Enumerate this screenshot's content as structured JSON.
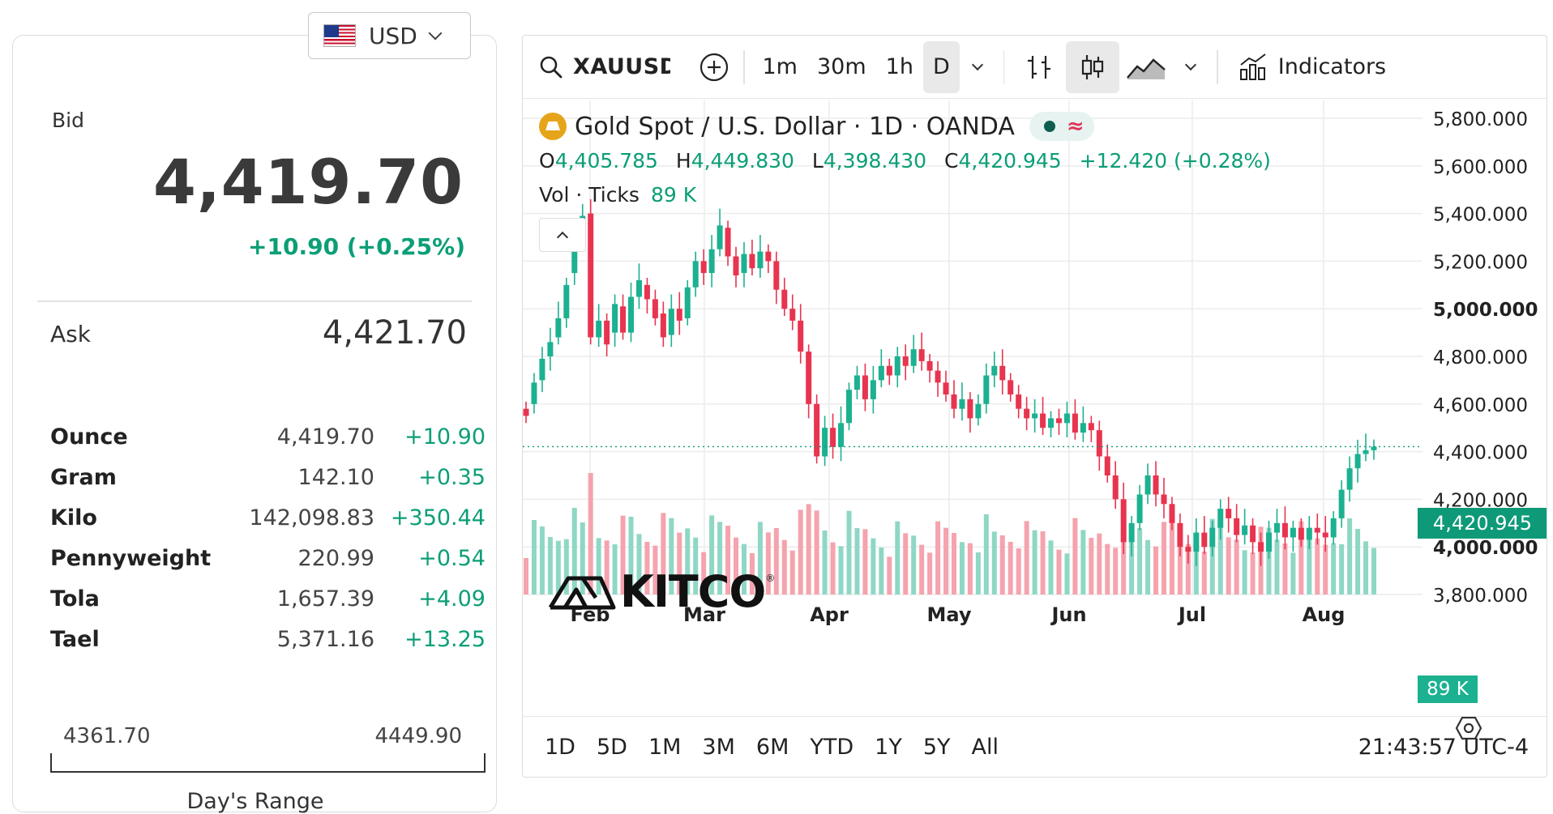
{
  "quote": {
    "currency": "USD",
    "bid_label": "Bid",
    "bid": "4,419.70",
    "bid_change": "+10.90 (+0.25%)",
    "ask_label": "Ask",
    "ask": "4,421.70",
    "units": [
      {
        "name": "Ounce",
        "price": "4,419.70",
        "change": "+10.90"
      },
      {
        "name": "Gram",
        "price": "142.10",
        "change": "+0.35"
      },
      {
        "name": "Kilo",
        "price": "142,098.83",
        "change": "+350.44"
      },
      {
        "name": "Pennyweight",
        "price": "220.99",
        "change": "+0.54"
      },
      {
        "name": "Tola",
        "price": "1,657.39",
        "change": "+4.09"
      },
      {
        "name": "Tael",
        "price": "5,371.16",
        "change": "+13.25"
      }
    ],
    "range_low": "4361.70",
    "range_high": "4449.90",
    "range_label": "Day's Range"
  },
  "toolbar": {
    "symbol": "XAUUSD",
    "intervals": [
      "1m",
      "30m",
      "1h",
      "D"
    ],
    "active_interval": "D",
    "indicators_label": "Indicators",
    "icons": [
      "search-icon",
      "add-symbol-icon",
      "bar-chart-icon",
      "candlestick-icon",
      "area-chart-icon",
      "indicators-icon"
    ]
  },
  "legend": {
    "title": "Gold Spot / U.S. Dollar · 1D · OANDA",
    "o_label": "O",
    "o": "4,405.785",
    "h_label": "H",
    "h": "4,449.830",
    "l_label": "L",
    "l": "4,398.430",
    "c_label": "C",
    "c": "4,420.945",
    "change": "+12.420 (+0.28%)",
    "vol_label": "Vol · Ticks",
    "vol": "89 K"
  },
  "price_tag": "4,420.945",
  "vol_tag": "89 K",
  "ranges": [
    "1D",
    "5D",
    "1M",
    "3M",
    "6M",
    "YTD",
    "1Y",
    "5Y",
    "All"
  ],
  "clock": "21:43:57 UTC-4",
  "watermark": "KITCO",
  "colors": {
    "up": "#1cb190",
    "down": "#e8344f",
    "accent": "#0e9a78"
  },
  "chart_data": {
    "type": "candlestick",
    "title": "Gold Spot / U.S. Dollar · 1D · OANDA",
    "y_ticks": [
      "5,800.000",
      "5,600.000",
      "5,400.000",
      "5,200.000",
      "5,000.000",
      "4,800.000",
      "4,600.000",
      "4,400.000",
      "4,200.000",
      "4,000.000",
      "3,800.000"
    ],
    "y_ticks_bold": [
      "5,000.000",
      "4,000.000"
    ],
    "x_ticks": [
      "Feb",
      "Mar",
      "Apr",
      "May",
      "Jun",
      "Jul",
      "Aug"
    ],
    "ylim": [
      3800,
      5800
    ],
    "last_close": 4420.945,
    "series": [
      {
        "name": "Gold Spot",
        "values": [
          {
            "o": 4580,
            "c": 4550
          },
          {
            "o": 4600,
            "c": 4690
          },
          {
            "o": 4700,
            "c": 4790
          },
          {
            "o": 4800,
            "c": 4860
          },
          {
            "o": 4880,
            "c": 4960
          },
          {
            "o": 4960,
            "c": 5100
          },
          {
            "o": 5150,
            "c": 5300
          },
          {
            "o": 5300,
            "c": 5390
          },
          {
            "o": 5400,
            "c": 4880
          },
          {
            "o": 4880,
            "c": 4950
          },
          {
            "o": 4950,
            "c": 4850
          },
          {
            "o": 4900,
            "c": 5020
          },
          {
            "o": 5010,
            "c": 4900
          },
          {
            "o": 4900,
            "c": 5050
          },
          {
            "o": 5050,
            "c": 5120
          },
          {
            "o": 5100,
            "c": 5040
          },
          {
            "o": 5040,
            "c": 4960
          },
          {
            "o": 4980,
            "c": 4880
          },
          {
            "o": 4890,
            "c": 5000
          },
          {
            "o": 5000,
            "c": 4950
          },
          {
            "o": 4960,
            "c": 5090
          },
          {
            "o": 5090,
            "c": 5200
          },
          {
            "o": 5200,
            "c": 5150
          },
          {
            "o": 5150,
            "c": 5250
          },
          {
            "o": 5250,
            "c": 5350
          },
          {
            "o": 5340,
            "c": 5220
          },
          {
            "o": 5220,
            "c": 5140
          },
          {
            "o": 5150,
            "c": 5230
          },
          {
            "o": 5230,
            "c": 5170
          },
          {
            "o": 5170,
            "c": 5240
          },
          {
            "o": 5240,
            "c": 5200
          },
          {
            "o": 5200,
            "c": 5080
          },
          {
            "o": 5080,
            "c": 5000
          },
          {
            "o": 5000,
            "c": 4950
          },
          {
            "o": 4950,
            "c": 4820
          },
          {
            "o": 4820,
            "c": 4600
          },
          {
            "o": 4600,
            "c": 4380
          },
          {
            "o": 4380,
            "c": 4500
          },
          {
            "o": 4500,
            "c": 4420
          },
          {
            "o": 4420,
            "c": 4520
          },
          {
            "o": 4520,
            "c": 4660
          },
          {
            "o": 4660,
            "c": 4720
          },
          {
            "o": 4720,
            "c": 4620
          },
          {
            "o": 4620,
            "c": 4700
          },
          {
            "o": 4700,
            "c": 4760
          },
          {
            "o": 4760,
            "c": 4720
          },
          {
            "o": 4720,
            "c": 4800
          },
          {
            "o": 4800,
            "c": 4760
          },
          {
            "o": 4760,
            "c": 4830
          },
          {
            "o": 4830,
            "c": 4780
          },
          {
            "o": 4780,
            "c": 4740
          },
          {
            "o": 4740,
            "c": 4690
          },
          {
            "o": 4690,
            "c": 4640
          },
          {
            "o": 4640,
            "c": 4580
          },
          {
            "o": 4580,
            "c": 4620
          },
          {
            "o": 4620,
            "c": 4540
          },
          {
            "o": 4540,
            "c": 4600
          },
          {
            "o": 4600,
            "c": 4720
          },
          {
            "o": 4720,
            "c": 4760
          },
          {
            "o": 4760,
            "c": 4700
          },
          {
            "o": 4700,
            "c": 4640
          },
          {
            "o": 4640,
            "c": 4580
          },
          {
            "o": 4580,
            "c": 4540
          },
          {
            "o": 4540,
            "c": 4560
          },
          {
            "o": 4560,
            "c": 4500
          },
          {
            "o": 4500,
            "c": 4540
          },
          {
            "o": 4540,
            "c": 4520
          },
          {
            "o": 4520,
            "c": 4560
          },
          {
            "o": 4560,
            "c": 4480
          },
          {
            "o": 4480,
            "c": 4520
          },
          {
            "o": 4520,
            "c": 4490
          },
          {
            "o": 4490,
            "c": 4380
          },
          {
            "o": 4380,
            "c": 4300
          },
          {
            "o": 4300,
            "c": 4200
          },
          {
            "o": 4200,
            "c": 4020
          },
          {
            "o": 4020,
            "c": 4100
          },
          {
            "o": 4100,
            "c": 4220
          },
          {
            "o": 4220,
            "c": 4300
          },
          {
            "o": 4300,
            "c": 4220
          },
          {
            "o": 4220,
            "c": 4180
          },
          {
            "o": 4180,
            "c": 4100
          },
          {
            "o": 4100,
            "c": 4000
          },
          {
            "o": 4000,
            "c": 3980
          },
          {
            "o": 3980,
            "c": 4060
          },
          {
            "o": 4060,
            "c": 4000
          },
          {
            "o": 4000,
            "c": 4080
          },
          {
            "o": 4080,
            "c": 4160
          },
          {
            "o": 4160,
            "c": 4120
          },
          {
            "o": 4120,
            "c": 4050
          },
          {
            "o": 4050,
            "c": 4090
          },
          {
            "o": 4090,
            "c": 4020
          },
          {
            "o": 4020,
            "c": 3980
          },
          {
            "o": 3980,
            "c": 4060
          },
          {
            "o": 4060,
            "c": 4100
          },
          {
            "o": 4100,
            "c": 4040
          },
          {
            "o": 4040,
            "c": 4080
          },
          {
            "o": 4080,
            "c": 4030
          },
          {
            "o": 4030,
            "c": 4080
          },
          {
            "o": 4080,
            "c": 4060
          },
          {
            "o": 4060,
            "c": 4040
          },
          {
            "o": 4040,
            "c": 4120
          },
          {
            "o": 4120,
            "c": 4240
          },
          {
            "o": 4240,
            "c": 4330
          },
          {
            "o": 4330,
            "c": 4390
          },
          {
            "o": 4390,
            "c": 4405.785
          },
          {
            "o": 4405.785,
            "c": 4420.945
          }
        ]
      }
    ],
    "volume": {
      "name": "Vol · Ticks",
      "last": "89 K"
    }
  }
}
